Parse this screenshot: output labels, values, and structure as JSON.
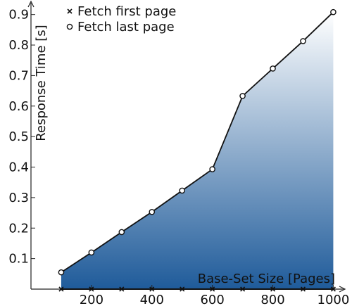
{
  "chart_data": {
    "type": "area",
    "title": "",
    "xlabel": "Base-Set Size [Pages]",
    "ylabel": "Response Time [s]",
    "xlim": [
      0,
      1020
    ],
    "ylim": [
      0,
      0.92
    ],
    "x_ticks": [
      200,
      400,
      600,
      800,
      1000
    ],
    "y_ticks": [
      0.1,
      0.2,
      0.3,
      0.4,
      0.5,
      0.6,
      0.7,
      0.8,
      0.9
    ],
    "x": [
      100,
      200,
      300,
      400,
      500,
      600,
      700,
      800,
      900,
      1000
    ],
    "series": [
      {
        "name": "Fetch first page",
        "marker": "x",
        "values": [
          0,
          0,
          0,
          0,
          0,
          0,
          0,
          0,
          0,
          0
        ]
      },
      {
        "name": "Fetch last page",
        "marker": "circle",
        "values": [
          0.055,
          0.12,
          0.187,
          0.253,
          0.323,
          0.393,
          0.633,
          0.723,
          0.813,
          0.908
        ]
      }
    ],
    "fill": {
      "top_color": "#ffffff",
      "bottom_color": "#1f5b9a"
    },
    "legend_position": "top-center",
    "grid": false
  }
}
